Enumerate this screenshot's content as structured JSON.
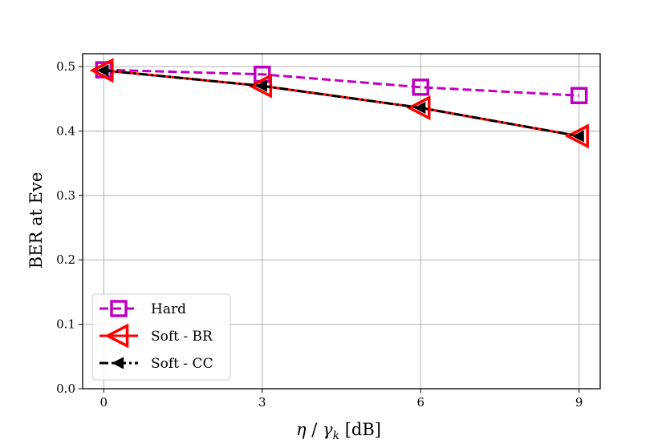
{
  "chart_data": {
    "type": "line",
    "x": [
      0,
      3,
      6,
      9
    ],
    "xticks": [
      "0",
      "3",
      "6",
      "9"
    ],
    "yticks": [
      "0.0",
      "0.1",
      "0.2",
      "0.3",
      "0.4",
      "0.5"
    ],
    "xlim": [
      -0.4,
      9.4
    ],
    "ylim": [
      0.0,
      0.52
    ],
    "grid": true,
    "xlabel_parts": {
      "eta": "η",
      "slash": " / ",
      "gamma": "γ",
      "sub": "k",
      "unit": " [dB]"
    },
    "ylabel": "BER at Eve",
    "legend_position": "lower-left",
    "series": [
      {
        "name": "Hard",
        "values": [
          0.495,
          0.488,
          0.468,
          0.455
        ],
        "color": "#bf00bf",
        "marker": "square",
        "line": "dashed"
      },
      {
        "name": "Soft - BR",
        "values": [
          0.494,
          0.47,
          0.436,
          0.392
        ],
        "color": "#ff0000",
        "marker": "triangle-left",
        "line": "solid"
      },
      {
        "name": "Soft - CC",
        "values": [
          0.494,
          0.47,
          0.436,
          0.392
        ],
        "color": "#000000",
        "marker": "triangle-left-filled",
        "line": "dashdot"
      }
    ]
  }
}
